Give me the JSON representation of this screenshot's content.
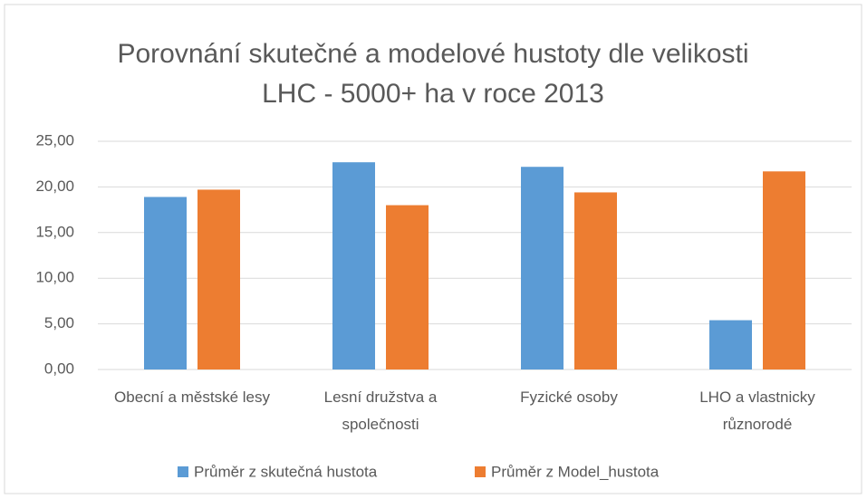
{
  "chart_data": {
    "type": "bar",
    "title": "Porovnání skutečné a modelové hustoty dle velikosti LHC - 5000+ ha v roce 2013",
    "categories": [
      "Obecní a městské lesy",
      "Lesní družstva a společnosti",
      "Fyzické osoby",
      "LHO a vlastnicky různorodé"
    ],
    "series": [
      {
        "name": "Průměr z skutečná hustota",
        "color": "#5b9bd5",
        "values": [
          18.9,
          22.7,
          22.2,
          5.4
        ]
      },
      {
        "name": "Průměr z Model_hustota",
        "color": "#ed7d31",
        "values": [
          19.7,
          18.0,
          19.4,
          21.7
        ]
      }
    ],
    "ylim": [
      0,
      25
    ],
    "yticks": [
      {
        "value": 0,
        "label": "0,00"
      },
      {
        "value": 5,
        "label": "5,00"
      },
      {
        "value": 10,
        "label": "10,00"
      },
      {
        "value": 15,
        "label": "15,00"
      },
      {
        "value": 20,
        "label": "20,00"
      },
      {
        "value": 25,
        "label": "25,00"
      }
    ],
    "grid": true,
    "legend": "bottom"
  }
}
